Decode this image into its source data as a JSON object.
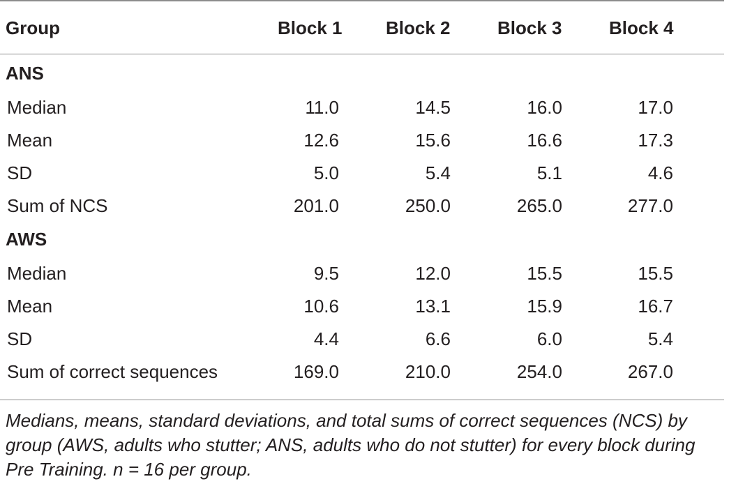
{
  "table": {
    "headers": [
      "Group",
      "Block 1",
      "Block 2",
      "Block 3",
      "Block 4"
    ],
    "sections": [
      {
        "title": "ANS",
        "rows": [
          {
            "label": "Median",
            "values": [
              "11.0",
              "14.5",
              "16.0",
              "17.0"
            ]
          },
          {
            "label": "Mean",
            "values": [
              "12.6",
              "15.6",
              "16.6",
              "17.3"
            ]
          },
          {
            "label": "SD",
            "values": [
              "5.0",
              "5.4",
              "5.1",
              "4.6"
            ]
          },
          {
            "label": "Sum of NCS",
            "values": [
              "201.0",
              "250.0",
              "265.0",
              "277.0"
            ]
          }
        ]
      },
      {
        "title": "AWS",
        "rows": [
          {
            "label": "Median",
            "values": [
              "9.5",
              "12.0",
              "15.5",
              "15.5"
            ]
          },
          {
            "label": "Mean",
            "values": [
              "10.6",
              "13.1",
              "15.9",
              "16.7"
            ]
          },
          {
            "label": "SD",
            "values": [
              "4.4",
              "6.6",
              "6.0",
              "5.4"
            ]
          },
          {
            "label": "Sum of correct sequences",
            "values": [
              "169.0",
              "210.0",
              "254.0",
              "267.0"
            ]
          }
        ]
      }
    ]
  },
  "caption": "Medians, means, standard deviations, and total sums of correct sequences (NCS) by group (AWS, adults who stutter; ANS, adults who do not stutter) for every block during Pre Training. n = 16 per group."
}
